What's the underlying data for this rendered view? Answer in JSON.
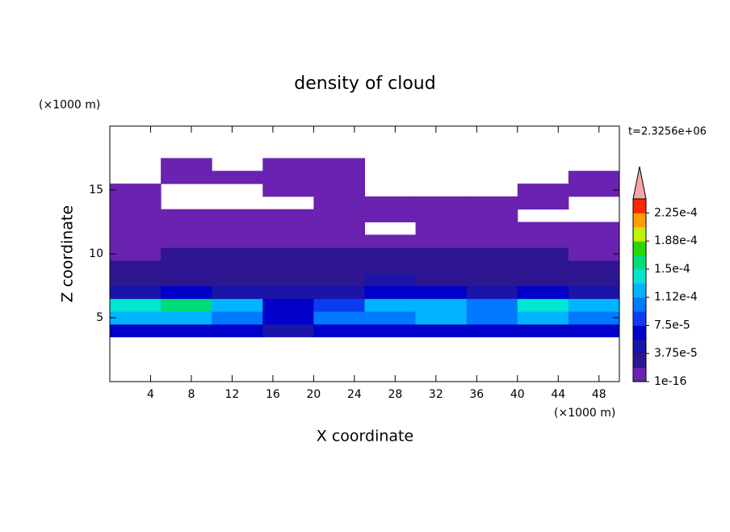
{
  "chart_data": {
    "type": "contour",
    "title": "density of cloud",
    "xlabel": "X coordinate",
    "ylabel": "Z coordinate",
    "xlabel_unit": "(×1000 m)",
    "ylabel_unit": "(×1000 m)",
    "annotation": "t=2.3256e+06",
    "xlim": [
      0,
      50
    ],
    "ylim": [
      0,
      20
    ],
    "xticks": [
      4,
      8,
      12,
      16,
      20,
      24,
      28,
      32,
      36,
      40,
      44,
      48
    ],
    "yticks": [
      5,
      10,
      15
    ],
    "x": [
      2.5,
      7.5,
      12.5,
      17.5,
      22.5,
      27.5,
      32.5,
      37.5,
      42.5,
      47.5
    ],
    "z": [
      4,
      5,
      6,
      7,
      8,
      9,
      10,
      11,
      12,
      13,
      14,
      15,
      16,
      17
    ],
    "values": [
      [
        6e-05,
        7e-05,
        6e-05,
        5e-05,
        7e-05,
        6e-05,
        7e-05,
        6e-05,
        7e-05,
        6e-05
      ],
      [
        0.00012,
        0.00013,
        0.0001,
        6e-05,
        0.00011,
        0.00011,
        0.00012,
        0.0001,
        0.00013,
        0.00011
      ],
      [
        0.00015,
        0.00016,
        0.00013,
        7e-05,
        8e-05,
        0.00012,
        0.00013,
        0.00011,
        0.00015,
        0.00012
      ],
      [
        5e-05,
        6e-05,
        5e-05,
        4e-05,
        5e-05,
        7e-05,
        6e-05,
        5e-05,
        6e-05,
        5e-05
      ],
      [
        3e-05,
        3e-05,
        3e-05,
        3e-05,
        3e-05,
        4e-05,
        3e-05,
        3e-05,
        3e-05,
        3e-05
      ],
      [
        2e-05,
        2e-05,
        2e-05,
        2e-05,
        2e-05,
        2e-05,
        2e-05,
        2e-05,
        2e-05,
        2e-05
      ],
      [
        1e-16,
        2e-05,
        2e-05,
        2e-05,
        2e-05,
        2e-05,
        2e-05,
        2e-05,
        2e-05,
        1e-16
      ],
      [
        1e-16,
        1e-16,
        1e-16,
        1e-16,
        1e-16,
        1e-16,
        1e-16,
        1e-16,
        1e-16,
        1e-16
      ],
      [
        1e-16,
        1e-16,
        1e-16,
        1e-16,
        1e-16,
        null,
        1e-16,
        1e-16,
        1e-16,
        1e-16
      ],
      [
        1e-16,
        1e-16,
        1e-16,
        1e-16,
        1e-16,
        1e-16,
        1e-16,
        1e-16,
        null,
        null
      ],
      [
        1e-16,
        null,
        null,
        null,
        1e-16,
        1e-16,
        1e-16,
        1e-16,
        1e-16,
        null
      ],
      [
        1e-16,
        null,
        null,
        1e-16,
        1e-16,
        null,
        null,
        null,
        1e-16,
        1e-16
      ],
      [
        null,
        1e-16,
        1e-16,
        1e-16,
        1e-16,
        null,
        null,
        null,
        null,
        1e-16
      ],
      [
        null,
        1e-16,
        null,
        1e-16,
        1e-16,
        null,
        null,
        null,
        null,
        null
      ]
    ],
    "clim": [
      1e-16,
      0.00024375
    ],
    "colors": [
      "#6a23b0",
      "#2e1690",
      "#1a14a8",
      "#0000c8",
      "#0a3cf0",
      "#0078ff",
      "#00b4ff",
      "#00e6d2",
      "#00dc78",
      "#28d800",
      "#c8f000",
      "#ffa000",
      "#ff2800"
    ],
    "extend_color": "#f4a6a6",
    "cticks": [
      1e-16,
      {
        "value": 3.75e-05,
        "label": "3.75e-5"
      },
      {
        "value": 7.5e-05,
        "label": "7.5e-5"
      },
      {
        "value": 0.0001125,
        "label": "1.12e-4"
      },
      {
        "value": 0.00015,
        "label": "1.5e-4"
      },
      {
        "value": 0.0001875,
        "label": "1.88e-4"
      },
      {
        "value": 0.000225,
        "label": "2.25e-4"
      }
    ]
  }
}
